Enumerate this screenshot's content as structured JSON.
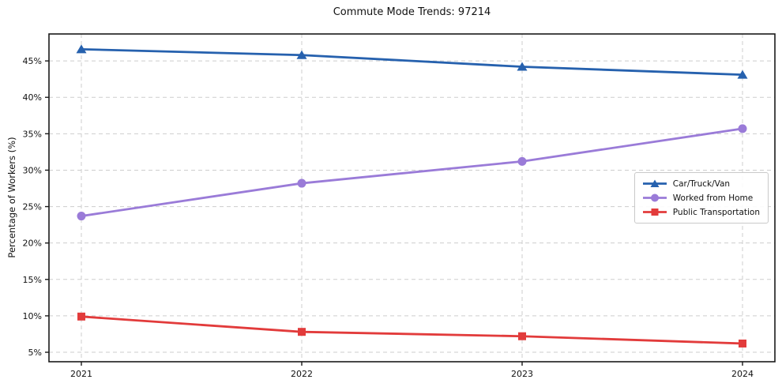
{
  "chart_data": {
    "type": "line",
    "title": "Commute Mode Trends: 97214",
    "ylabel": "Percentage of Workers (%)",
    "xlabel": "",
    "x": [
      "2021",
      "2022",
      "2023",
      "2024"
    ],
    "series": [
      {
        "name": "Car/Truck/Van",
        "color": "#2661ae",
        "marker": "triangle",
        "values": [
          46.6,
          45.8,
          44.2,
          43.1
        ]
      },
      {
        "name": "Worked from Home",
        "color": "#9a7bd8",
        "marker": "circle",
        "values": [
          23.7,
          28.2,
          31.2,
          35.7
        ]
      },
      {
        "name": "Public Transportation",
        "color": "#e23b3b",
        "marker": "square",
        "values": [
          9.9,
          7.8,
          7.2,
          6.2
        ]
      }
    ],
    "ylim": [
      3.7,
      48.7
    ],
    "yticks": [
      5,
      10,
      15,
      20,
      25,
      30,
      35,
      40,
      45
    ],
    "ytick_suffix": "%",
    "grid": true,
    "grid_style": "dashed",
    "legend_position": "center right"
  },
  "colors": {
    "grid": "#cdcdcd",
    "spine": "#1a1a1a",
    "text": "#111111",
    "legend_border": "#c9c9c9",
    "background": "#ffffff"
  }
}
